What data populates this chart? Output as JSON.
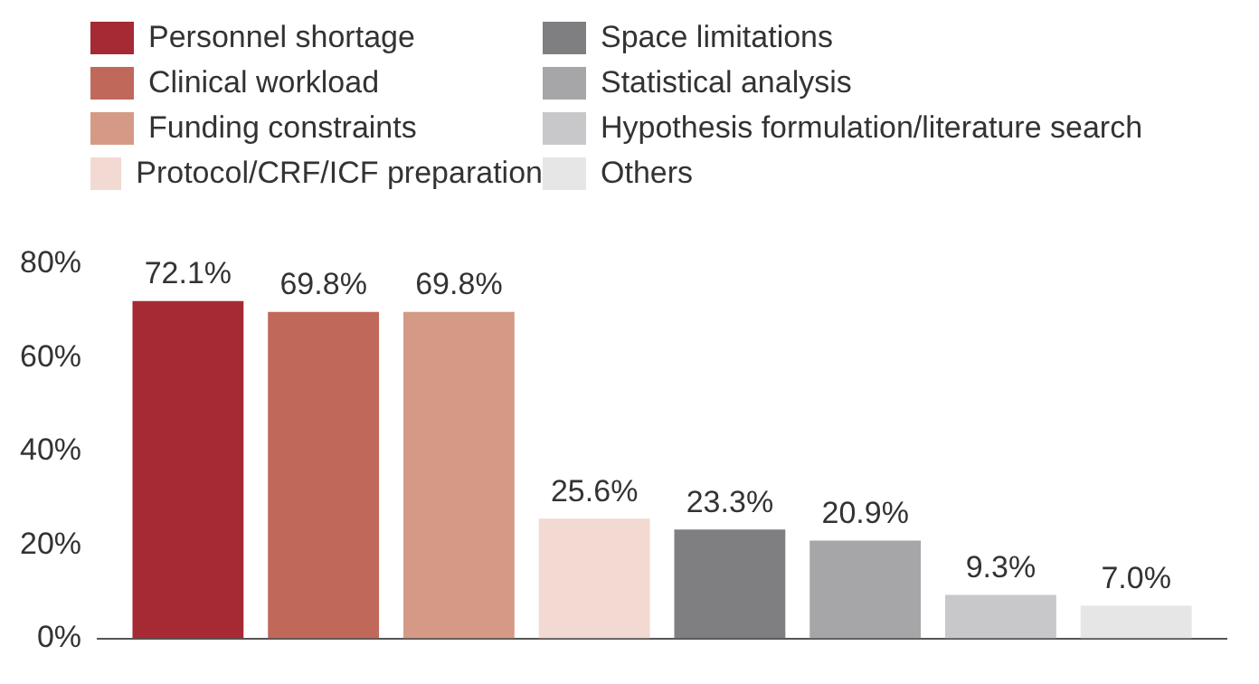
{
  "chart_data": {
    "type": "bar",
    "categories": [
      null
    ],
    "series": [
      {
        "name": "Personnel shortage",
        "color": "#a52a33",
        "values": [
          72.1
        ],
        "value_labels": [
          "72.1%"
        ]
      },
      {
        "name": "Clinical workload",
        "color": "#c0685a",
        "values": [
          69.8
        ],
        "value_labels": [
          "69.8%"
        ]
      },
      {
        "name": "Funding constraints",
        "color": "#d49a86",
        "values": [
          69.8
        ],
        "value_labels": [
          "69.8%"
        ]
      },
      {
        "name": "Protocol/CRF/ICF preparation",
        "color": "#f2d9d2",
        "values": [
          25.6
        ],
        "value_labels": [
          "25.6%"
        ]
      },
      {
        "name": "Space limitations",
        "color": "#7f7f82",
        "values": [
          23.3
        ],
        "value_labels": [
          "23.3%"
        ]
      },
      {
        "name": "Statistical analysis",
        "color": "#a6a6a9",
        "values": [
          20.9
        ],
        "value_labels": [
          "20.9%"
        ]
      },
      {
        "name": "Hypothesis formulation/literature search",
        "color": "#c8c8ca",
        "values": [
          9.3
        ],
        "value_labels": [
          "9.3%"
        ]
      },
      {
        "name": "Others",
        "color": "#e6e6e7",
        "values": [
          7.0
        ],
        "value_labels": [
          "7.0%"
        ]
      }
    ],
    "ylim": [
      0,
      80
    ],
    "yticks": [
      {
        "value": 0,
        "label": "0%"
      },
      {
        "value": 20,
        "label": "20%"
      },
      {
        "value": 40,
        "label": "40%"
      },
      {
        "value": 60,
        "label": "60%"
      },
      {
        "value": 80,
        "label": "80%"
      }
    ],
    "grid": false,
    "legend": "top left"
  }
}
